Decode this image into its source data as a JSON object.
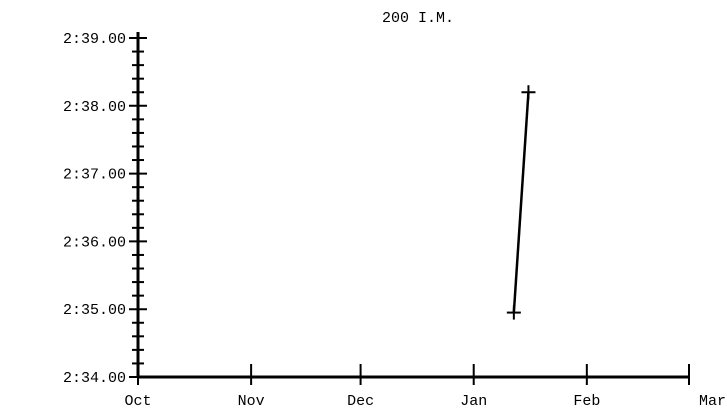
{
  "chart_data": {
    "type": "line",
    "title": "200 I.M.",
    "xlabel": "",
    "ylabel": "",
    "x_tick_labels": [
      "Oct",
      "Nov",
      "Dec",
      "Jan",
      "Feb",
      "Mar"
    ],
    "y_tick_labels": [
      "2:39.00",
      "2:38.00",
      "2:37.00",
      "2:36.00",
      "2:35.00",
      "2:34.00"
    ],
    "y_tick_values": [
      159,
      158,
      157,
      156,
      155,
      154
    ],
    "ylim": [
      154,
      159
    ],
    "y_minor_step": 0.2,
    "y_format": "m:ss.cc",
    "grid": false,
    "series": [
      {
        "points": [
          {
            "date": "Jan 12",
            "seconds": 154.95
          },
          {
            "date": "Jan 16",
            "seconds": 158.2
          }
        ]
      }
    ]
  }
}
